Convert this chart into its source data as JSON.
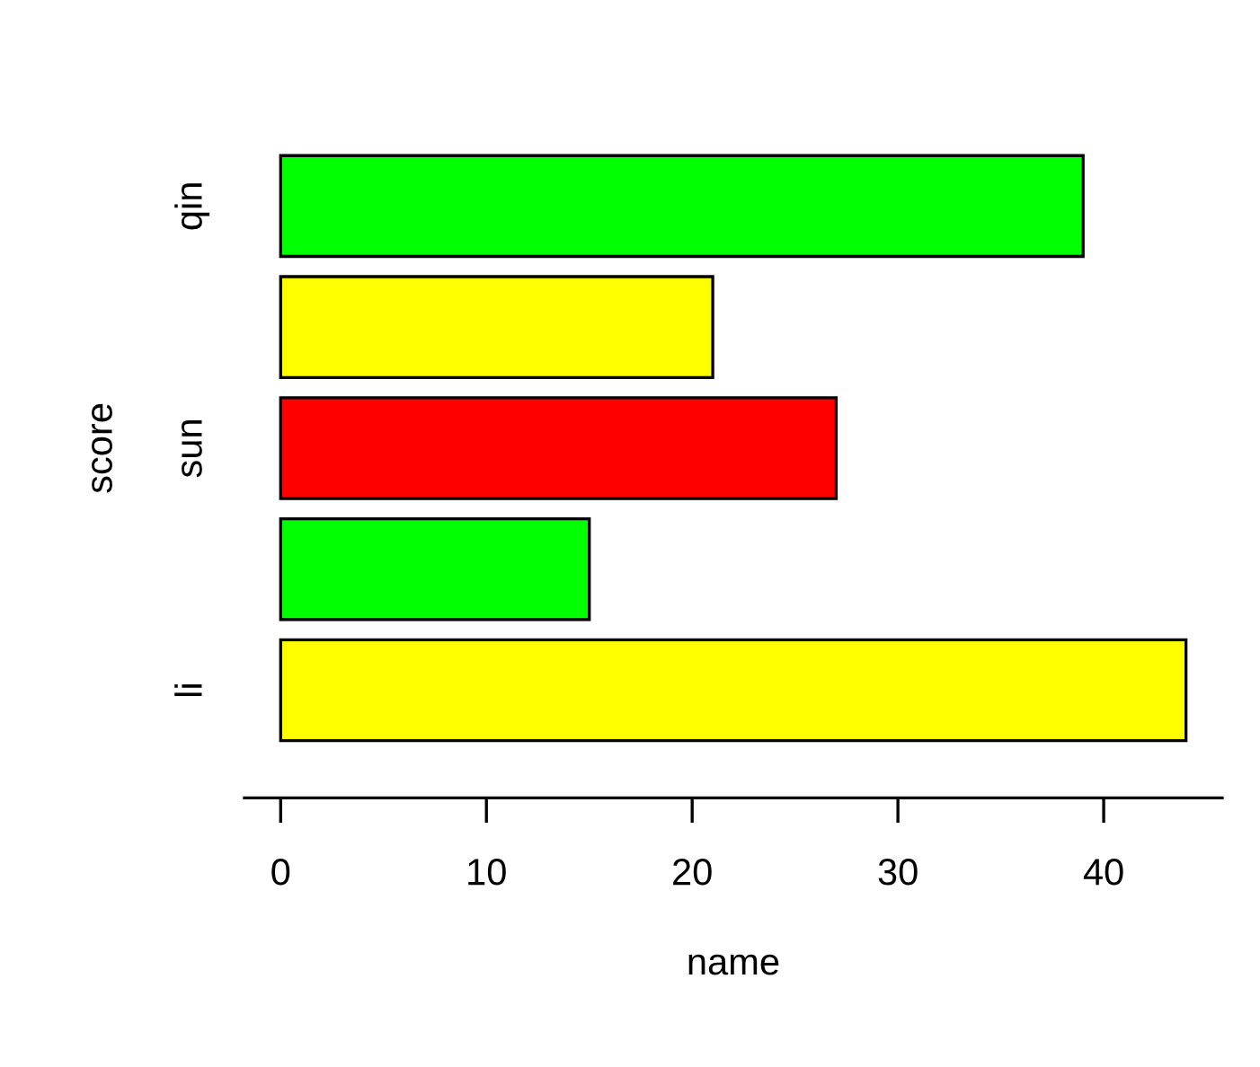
{
  "chart_data": {
    "type": "bar",
    "orientation": "horizontal",
    "xlabel": "name",
    "ylabel": "score",
    "categories": [
      "qin",
      null,
      "sun",
      null,
      "li"
    ],
    "values": [
      39,
      21,
      27,
      15,
      44
    ],
    "colors": [
      "#00ff00",
      "#ffff00",
      "#ff0000",
      "#00ff00",
      "#ffff00"
    ],
    "xlim": [
      -1.76,
      45.76
    ],
    "xticks": [
      0,
      10,
      20,
      30,
      40
    ],
    "grid": false,
    "legend": false
  }
}
